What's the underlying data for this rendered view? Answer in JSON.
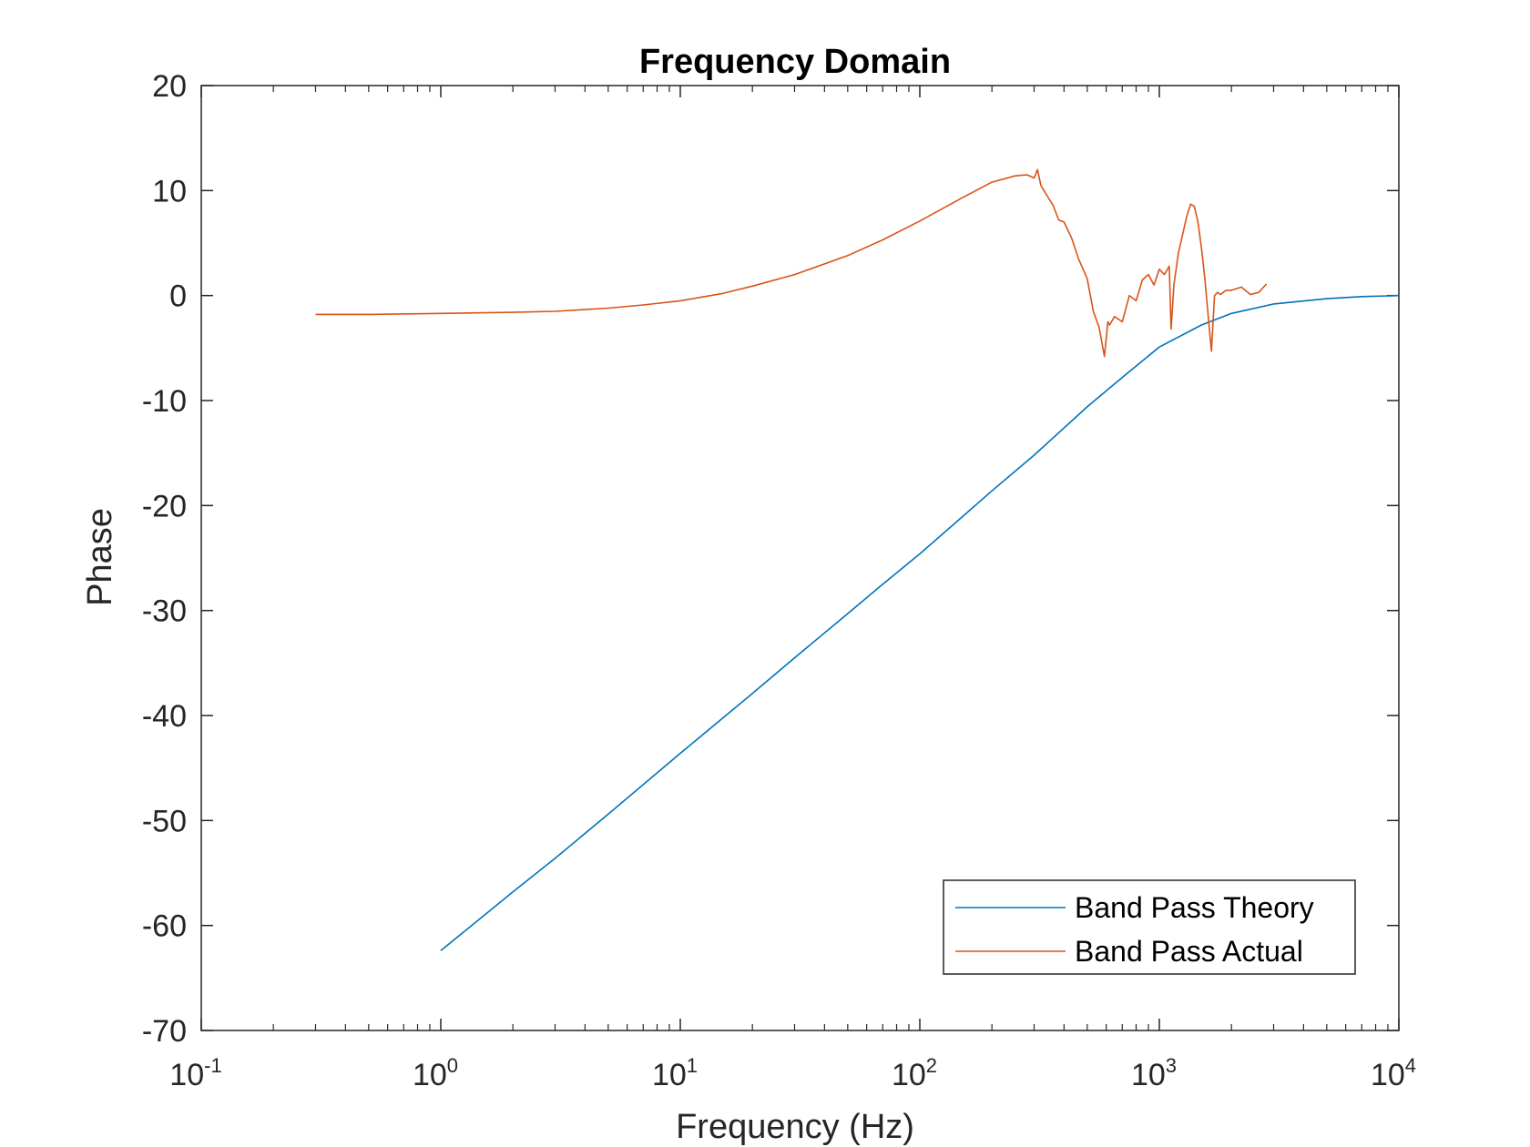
{
  "chart_data": {
    "type": "line",
    "title": "Frequency Domain",
    "xlabel": "Frequency (Hz)",
    "ylabel": "Phase",
    "xscale": "log",
    "xlim": [
      0.1,
      10000
    ],
    "ylim": [
      -70,
      20
    ],
    "x_ticks": [
      {
        "value": 0.1,
        "base": "10",
        "exp": "-1"
      },
      {
        "value": 1,
        "base": "10",
        "exp": "0"
      },
      {
        "value": 10,
        "base": "10",
        "exp": "1"
      },
      {
        "value": 100,
        "base": "10",
        "exp": "2"
      },
      {
        "value": 1000,
        "base": "10",
        "exp": "3"
      },
      {
        "value": 10000,
        "base": "10",
        "exp": "4"
      }
    ],
    "y_ticks": [
      "20",
      "10",
      "0",
      "-10",
      "-20",
      "-30",
      "-40",
      "-50",
      "-60",
      "-70"
    ],
    "grid": false,
    "legend_position": "bottom-right",
    "series": [
      {
        "name": "Band Pass Theory",
        "color": "#0072BD",
        "x": [
          1,
          2,
          3,
          5,
          10,
          20,
          30,
          50,
          70,
          100,
          150,
          200,
          300,
          500,
          700,
          1000,
          1500,
          2000,
          3000,
          5000,
          7000,
          10000
        ],
        "y": [
          -62.4,
          -56.8,
          -53.6,
          -49.4,
          -43.6,
          -37.9,
          -34.5,
          -30.3,
          -27.5,
          -24.6,
          -21.1,
          -18.6,
          -15.2,
          -10.6,
          -7.8,
          -4.9,
          -2.8,
          -1.7,
          -0.8,
          -0.3,
          -0.1,
          0
        ]
      },
      {
        "name": "Band Pass Actual",
        "color": "#D95319",
        "x": [
          0.3,
          0.5,
          1,
          2,
          3,
          5,
          7,
          10,
          15,
          20,
          30,
          50,
          70,
          100,
          150,
          200,
          250,
          280,
          300,
          310,
          320,
          340,
          360,
          380,
          400,
          430,
          460,
          500,
          530,
          560,
          590,
          610,
          620,
          650,
          700,
          750,
          800,
          850,
          900,
          950,
          1000,
          1050,
          1100,
          1120,
          1150,
          1200,
          1300,
          1350,
          1400,
          1450,
          1500,
          1550,
          1600,
          1650,
          1700,
          1750,
          1800,
          1900,
          2000,
          2200,
          2400,
          2600,
          2800
        ],
        "y": [
          -1.8,
          -1.8,
          -1.7,
          -1.6,
          -1.5,
          -1.2,
          -0.9,
          -0.5,
          0.2,
          0.9,
          2.0,
          3.8,
          5.3,
          7.1,
          9.3,
          10.8,
          11.4,
          11.5,
          11.2,
          12.0,
          10.5,
          9.5,
          8.6,
          7.2,
          7.0,
          5.5,
          3.5,
          1.6,
          -1.5,
          -3.0,
          -5.8,
          -2.5,
          -2.8,
          -2.0,
          -2.5,
          0.0,
          -0.5,
          1.5,
          2.0,
          1.0,
          2.5,
          2.0,
          2.8,
          -3.2,
          1.0,
          4.0,
          7.5,
          8.7,
          8.5,
          7.0,
          4.5,
          1.5,
          -2.0,
          -5.3,
          0.0,
          0.3,
          0.1,
          0.5,
          0.5,
          0.8,
          0.1,
          0.3,
          1.1
        ]
      }
    ]
  }
}
